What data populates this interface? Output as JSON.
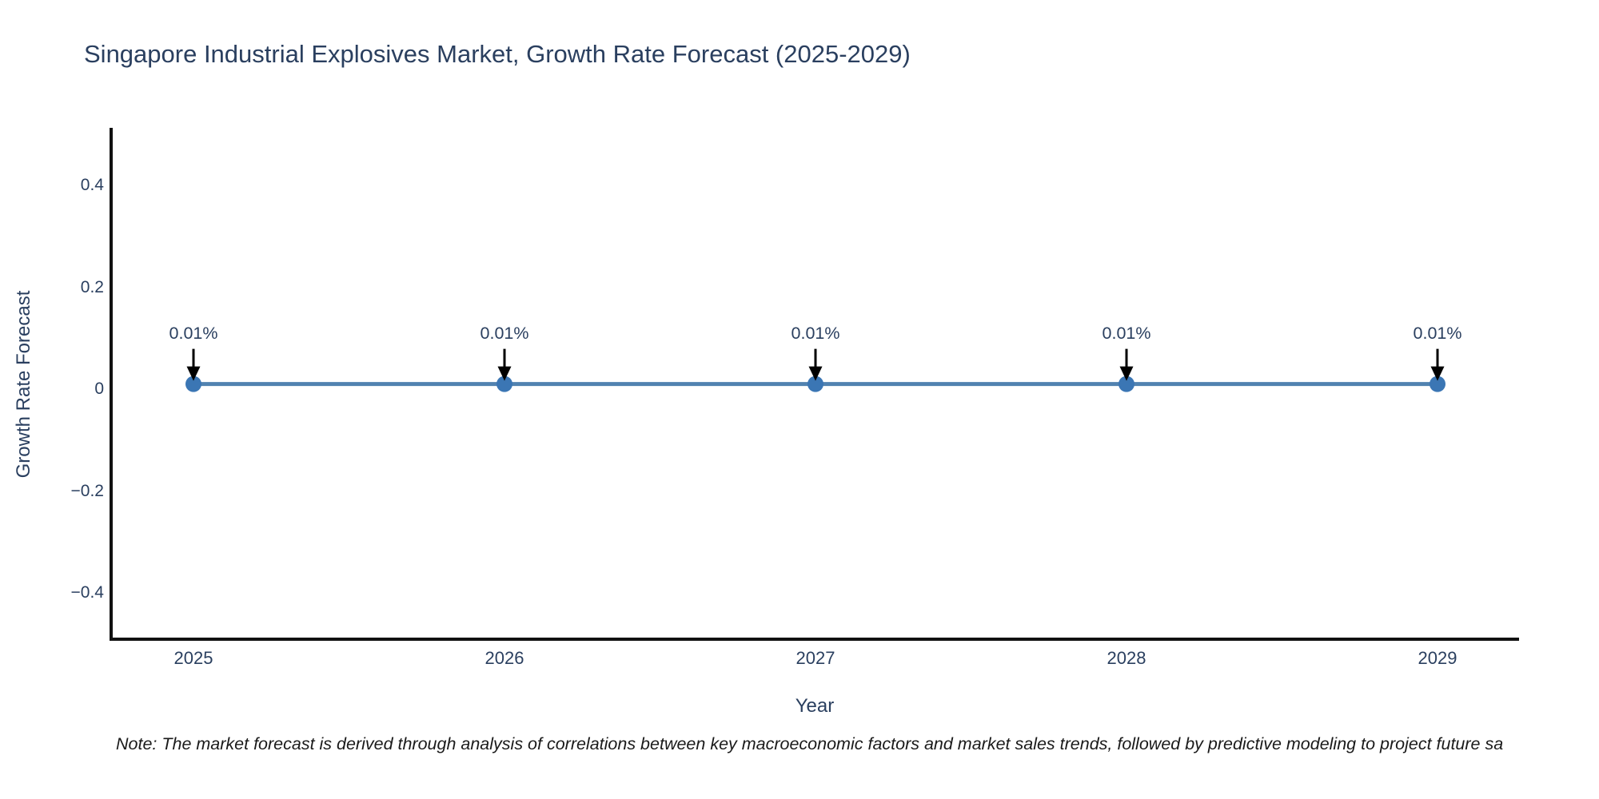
{
  "title": {
    "text": "Singapore Industrial Explosives Market, Growth Rate Forecast (2025-2029)"
  },
  "note": {
    "text": "Note: The market forecast is derived through analysis of correlations between key macroeconomic factors and market sales trends, followed by predictive modeling to project future sa"
  },
  "chart_data": {
    "type": "line",
    "categories": [
      "2025",
      "2026",
      "2027",
      "2028",
      "2029"
    ],
    "values": [
      0.01,
      0.01,
      0.01,
      0.01,
      0.01
    ],
    "point_labels": [
      "0.01%",
      "0.01%",
      "0.01%",
      "0.01%",
      "0.01%"
    ],
    "title": "Singapore Industrial Explosives Market, Growth Rate Forecast (2025-2029)",
    "xlabel": "Year",
    "ylabel": "Growth Rate Forecast",
    "yticks": {
      "values": [
        0.4,
        0.2,
        0,
        -0.2,
        -0.4
      ],
      "labels": [
        "0.4",
        "0.2",
        "0",
        "−0.2",
        "−0.4"
      ]
    },
    "ylim": [
      -0.49,
      0.51
    ],
    "grid": false,
    "legend": "none",
    "annotation_arrows": true,
    "colors": {
      "line": "#5182b0",
      "marker": "#3b76b4",
      "arrow": "#000000",
      "axis": "#111111",
      "text": "#2a3f5f",
      "note_text": "#1a1a1a",
      "background": "#ffffff"
    }
  }
}
